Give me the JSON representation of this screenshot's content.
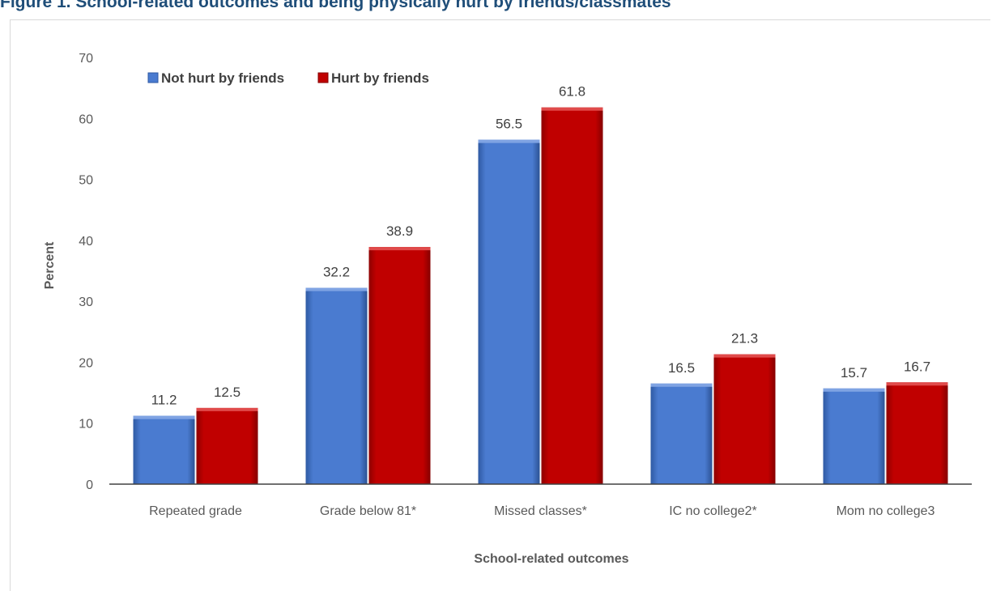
{
  "figure_title": "Figure 1. School-related outcomes and being physically hurt by friends/classmates",
  "chart_data": {
    "type": "bar",
    "categories": [
      "Repeated grade",
      "Grade below 81*",
      "Missed classes*",
      "IC no college2*",
      "Mom no college3"
    ],
    "series": [
      {
        "name": "Not hurt by friends",
        "values": [
          11.2,
          32.2,
          56.5,
          16.5,
          15.7
        ],
        "color": "#4a7bd0"
      },
      {
        "name": "Hurt by friends",
        "values": [
          12.5,
          38.9,
          61.8,
          21.3,
          16.7
        ],
        "color": "#c00000"
      }
    ],
    "xlabel": "School-related outcomes",
    "ylabel": "Percent",
    "ylim": [
      0,
      70
    ],
    "yticks": [
      0,
      10,
      20,
      30,
      40,
      50,
      60,
      70
    ],
    "grid": false,
    "legend_position": "top-left"
  }
}
